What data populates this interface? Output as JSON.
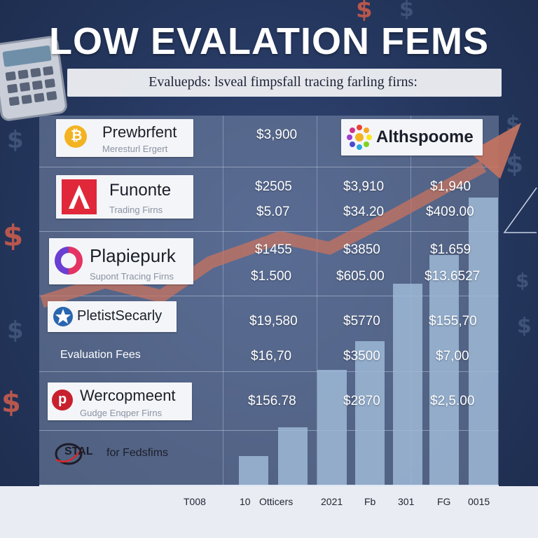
{
  "header": {
    "title": "LOW EVALATION FEMS",
    "subtitle": "Evaluepds: lsveal fimpsfall tracing farling firns:"
  },
  "colors": {
    "background": "#23345a",
    "trend_line": "#c8735f",
    "bars": "#9db8d6",
    "panel": "#7888a8"
  },
  "icons": [
    "calculator-icon",
    "dollar-sign-icon",
    "trend-arrow-icon"
  ],
  "firms": [
    {
      "name": "Prewbrfent",
      "tag": "Meresturl Ergert",
      "logo": "bitcoin-coin-icon"
    },
    {
      "name": "Althspoome",
      "tag": "",
      "logo": "colorful-wheel-icon"
    },
    {
      "name": "Funonte",
      "tag": "Trading Firns",
      "logo": "red-a-letter-icon"
    },
    {
      "name": "Plapiepurk",
      "tag": "Supont Tracing Firns",
      "logo": "c-ring-icon"
    },
    {
      "name": "PletistSecarly",
      "tag": "",
      "logo": "star-badge-icon"
    },
    {
      "name": "Wercopmeent",
      "tag": "Gudge Enqper Firns",
      "logo": "p-circle-icon"
    },
    {
      "name": "for Fedsfims",
      "tag": "",
      "logo": "stal-orbit-icon",
      "logo_text": "STAL"
    }
  ],
  "table": {
    "row_label": "Evaluation Fees",
    "cells": {
      "r0c1": "$3,900",
      "r1c1": "$2505",
      "r1c2": "$3,910",
      "r1c3": "$1,940",
      "r2c1": "$5.07",
      "r2c2": "$34.20",
      "r2c3": "$409.00",
      "r3c1": "$1455",
      "r3c2": "$3850",
      "r3c3": "$1.659",
      "r4c1": "$1.500",
      "r4c2": "$605.00",
      "r4c3": "$13.6527",
      "r5c1": "$19,580",
      "r5c2": "$5770",
      "r5c3": "$155,70",
      "r6c1": "$16,70",
      "r6c2": "$3500",
      "r6c3": "$7,00",
      "r7c1": "$156.78",
      "r7c2": "$2870",
      "r7c3": "$2,5.00"
    }
  },
  "chart_data": {
    "type": "bar",
    "title": "LOW EVALATION FEMS",
    "categories": [
      "T008",
      "10",
      "Otticers",
      "2021",
      "Fb",
      "301",
      "FG",
      "0015"
    ],
    "x_tick_labels": [
      "T008",
      "10",
      "Otticers",
      "2021",
      "Fb",
      "301",
      "FG",
      "0015"
    ],
    "values": [
      0,
      1,
      2,
      4,
      5,
      7,
      8,
      10
    ],
    "value_unit": "relative height, 0-10",
    "trend_line": {
      "description": "rising zigzag arrow trend",
      "values": [
        3.6,
        4.7,
        3.9,
        5.8,
        7.2,
        6.6,
        8.4,
        11.2
      ]
    },
    "ylim": [
      0,
      12
    ],
    "grid": true,
    "legend": "none"
  }
}
